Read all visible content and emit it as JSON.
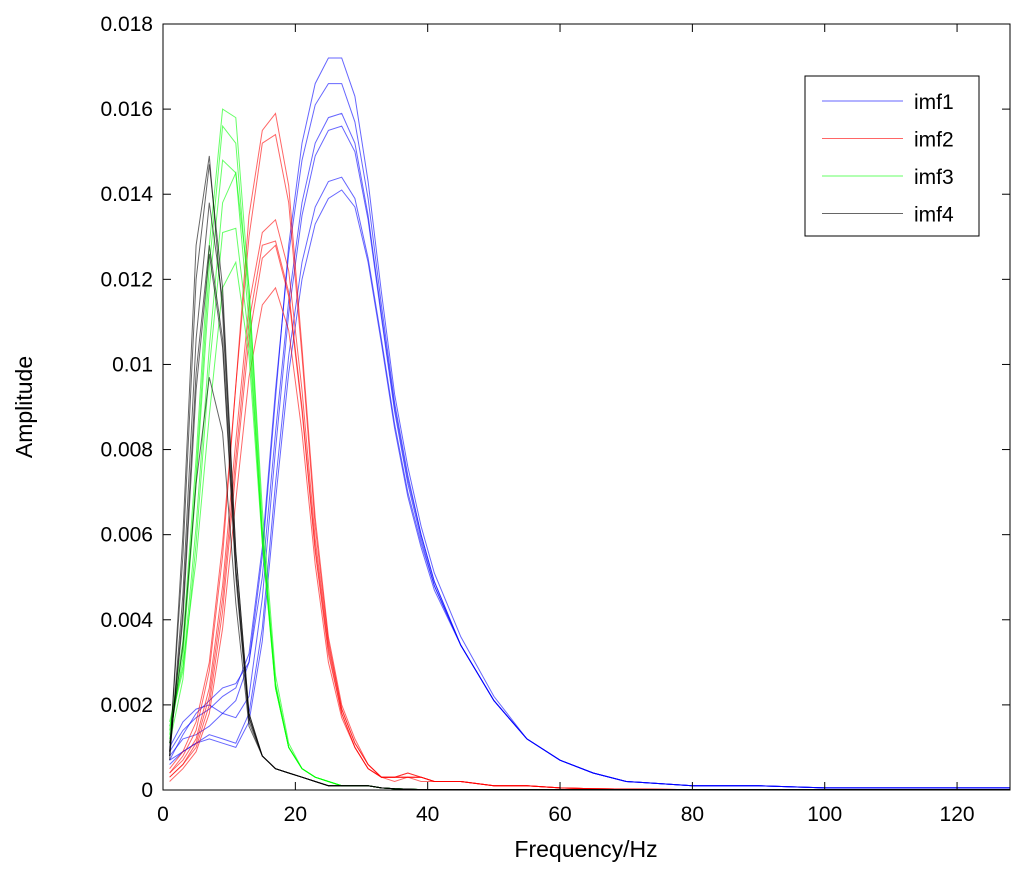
{
  "chart_data": {
    "type": "line",
    "title": "",
    "xlabel": "Frequency/Hz",
    "ylabel": "Amplitude",
    "xlim": [
      0,
      128
    ],
    "ylim": [
      0,
      0.018
    ],
    "xticks": [
      0,
      20,
      40,
      60,
      80,
      100,
      120
    ],
    "yticks": [
      0,
      0.002,
      0.004,
      0.006,
      0.008,
      0.01,
      0.012,
      0.014,
      0.016,
      0.018
    ],
    "ytick_labels": [
      "0",
      "0.002",
      "0.004",
      "0.006",
      "0.008",
      "0.01",
      "0.012",
      "0.014",
      "0.016",
      "0.018"
    ],
    "grid": false,
    "legend_position": "top-right",
    "x": [
      1,
      3,
      5,
      7,
      9,
      11,
      13,
      15,
      17,
      19,
      21,
      23,
      25,
      27,
      29,
      31,
      33,
      35,
      37,
      39,
      41,
      45,
      50,
      55,
      60,
      65,
      70,
      80,
      90,
      100,
      110,
      120,
      128
    ],
    "series": [
      {
        "name": "imf1",
        "color": "#0000ff",
        "curves": [
          [
            0.0008,
            0.0012,
            0.0013,
            0.0015,
            0.0018,
            0.0021,
            0.003,
            0.0055,
            0.0092,
            0.0128,
            0.0152,
            0.0166,
            0.0172,
            0.0172,
            0.0163,
            0.0143,
            0.0117,
            0.0093,
            0.0076,
            0.0062,
            0.0051,
            0.0036,
            0.0022,
            0.0012,
            0.0007,
            0.0004,
            0.0002,
            0.0001,
            0.0001,
            5e-05,
            5e-05,
            5e-05,
            5e-05
          ],
          [
            0.0009,
            0.0014,
            0.0017,
            0.0019,
            0.0022,
            0.0024,
            0.0032,
            0.0057,
            0.0094,
            0.0126,
            0.0148,
            0.0161,
            0.0166,
            0.0166,
            0.0157,
            0.0139,
            0.0114,
            0.0091,
            0.0074,
            0.006,
            0.0049,
            0.0034,
            0.0021,
            0.0012,
            0.0007,
            0.0004,
            0.0002,
            0.0001,
            0.0001,
            5e-05,
            5e-05,
            5e-05,
            5e-05
          ],
          [
            0.0007,
            0.0013,
            0.0018,
            0.0021,
            0.0024,
            0.0025,
            0.003,
            0.005,
            0.0084,
            0.0115,
            0.0138,
            0.0152,
            0.0158,
            0.0159,
            0.0152,
            0.0135,
            0.0112,
            0.009,
            0.0073,
            0.006,
            0.0049,
            0.0034,
            0.0021,
            0.0012,
            0.0007,
            0.0004,
            0.0002,
            0.0001,
            0.0001,
            5e-05,
            5e-05,
            5e-05,
            5e-05
          ],
          [
            0.001,
            0.0016,
            0.0019,
            0.002,
            0.0018,
            0.0017,
            0.0022,
            0.0045,
            0.008,
            0.0112,
            0.0135,
            0.0149,
            0.0155,
            0.0156,
            0.015,
            0.0134,
            0.0111,
            0.0089,
            0.0072,
            0.0059,
            0.0048,
            0.0034,
            0.0021,
            0.0012,
            0.0007,
            0.0004,
            0.0002,
            0.0001,
            0.0001,
            5e-05,
            5e-05,
            5e-05,
            5e-05
          ],
          [
            0.0006,
            0.0009,
            0.0011,
            0.0013,
            0.0012,
            0.0011,
            0.0018,
            0.0038,
            0.0072,
            0.0102,
            0.0124,
            0.0137,
            0.0143,
            0.0144,
            0.0139,
            0.0125,
            0.0106,
            0.0086,
            0.007,
            0.0058,
            0.0048,
            0.0034,
            0.0021,
            0.0012,
            0.0007,
            0.0004,
            0.0002,
            0.0001,
            0.0001,
            5e-05,
            5e-05,
            5e-05,
            5e-05
          ],
          [
            0.0007,
            0.0009,
            0.0011,
            0.0012,
            0.0011,
            0.001,
            0.0016,
            0.0035,
            0.0068,
            0.0098,
            0.012,
            0.0133,
            0.0139,
            0.0141,
            0.0137,
            0.0124,
            0.0105,
            0.0085,
            0.0069,
            0.0057,
            0.0047,
            0.0034,
            0.0021,
            0.0012,
            0.0007,
            0.0004,
            0.0002,
            0.0001,
            0.0001,
            5e-05,
            5e-05,
            5e-05,
            5e-05
          ]
        ]
      },
      {
        "name": "imf2",
        "color": "#ff0000",
        "curves": [
          [
            0.0004,
            0.0008,
            0.0014,
            0.0028,
            0.0055,
            0.0095,
            0.0135,
            0.0155,
            0.0159,
            0.0142,
            0.0104,
            0.0064,
            0.0036,
            0.002,
            0.0012,
            0.0006,
            0.0003,
            0.0003,
            0.0004,
            0.0003,
            0.0002,
            0.0002,
            0.0001,
            0.0001,
            5e-05,
            3e-05,
            2e-05,
            1e-05,
            1e-05,
            1e-05,
            1e-05,
            1e-05,
            1e-05
          ],
          [
            0.0005,
            0.0009,
            0.0016,
            0.003,
            0.0058,
            0.0095,
            0.013,
            0.0152,
            0.0154,
            0.0138,
            0.0102,
            0.0062,
            0.0035,
            0.0019,
            0.0011,
            0.0006,
            0.0003,
            0.0003,
            0.0004,
            0.0003,
            0.0002,
            0.0002,
            0.0001,
            0.0001,
            5e-05,
            3e-05,
            2e-05,
            1e-05,
            1e-05,
            1e-05,
            1e-05,
            1e-05,
            1e-05
          ],
          [
            0.0004,
            0.0007,
            0.0012,
            0.0024,
            0.0048,
            0.0082,
            0.0114,
            0.0131,
            0.0134,
            0.0122,
            0.0094,
            0.0059,
            0.0034,
            0.0019,
            0.0011,
            0.0006,
            0.0003,
            0.0003,
            0.0003,
            0.0003,
            0.0002,
            0.0002,
            0.0001,
            0.0001,
            5e-05,
            3e-05,
            2e-05,
            1e-05,
            1e-05,
            1e-05,
            1e-05,
            1e-05,
            1e-05
          ],
          [
            0.0003,
            0.0006,
            0.0011,
            0.0022,
            0.0045,
            0.0078,
            0.011,
            0.0128,
            0.0129,
            0.0117,
            0.009,
            0.0057,
            0.0033,
            0.0018,
            0.001,
            0.0005,
            0.0003,
            0.0003,
            0.0003,
            0.0003,
            0.0002,
            0.0002,
            0.0001,
            0.0001,
            5e-05,
            3e-05,
            2e-05,
            1e-05,
            1e-05,
            1e-05,
            1e-05,
            1e-05,
            1e-05
          ],
          [
            0.0003,
            0.0006,
            0.001,
            0.002,
            0.0042,
            0.0075,
            0.0106,
            0.0125,
            0.0128,
            0.0116,
            0.0089,
            0.0056,
            0.0032,
            0.0018,
            0.001,
            0.0005,
            0.0003,
            0.0003,
            0.0003,
            0.0003,
            0.0002,
            0.0002,
            0.0001,
            0.0001,
            5e-05,
            3e-05,
            2e-05,
            1e-05,
            1e-05,
            1e-05,
            1e-05,
            1e-05,
            1e-05
          ],
          [
            0.0002,
            0.0005,
            0.0009,
            0.0018,
            0.0038,
            0.0068,
            0.0097,
            0.0114,
            0.0118,
            0.0108,
            0.0084,
            0.0053,
            0.003,
            0.0017,
            0.001,
            0.0005,
            0.0003,
            0.0002,
            0.0003,
            0.0002,
            0.0002,
            0.0002,
            0.0001,
            0.0001,
            5e-05,
            3e-05,
            2e-05,
            1e-05,
            1e-05,
            1e-05,
            1e-05,
            1e-05,
            1e-05
          ]
        ]
      },
      {
        "name": "imf3",
        "color": "#00ff00",
        "curves": [
          [
            0.0014,
            0.0035,
            0.0078,
            0.0128,
            0.016,
            0.0158,
            0.0118,
            0.0062,
            0.0025,
            0.001,
            0.0005,
            0.0003,
            0.0002,
            0.0001,
            0.0001,
            0.0001,
            5e-05,
            3e-05,
            2e-05,
            1e-05,
            1e-05,
            1e-05,
            1e-05,
            1e-05,
            1e-05,
            1e-05,
            1e-05,
            1e-05,
            1e-05,
            1e-05,
            1e-05,
            1e-05,
            1e-05
          ],
          [
            0.0013,
            0.0033,
            0.0074,
            0.0123,
            0.0156,
            0.0152,
            0.0114,
            0.006,
            0.0024,
            0.001,
            0.0005,
            0.0003,
            0.0002,
            0.0001,
            0.0001,
            0.0001,
            5e-05,
            3e-05,
            2e-05,
            1e-05,
            1e-05,
            1e-05,
            1e-05,
            1e-05,
            1e-05,
            1e-05,
            1e-05,
            1e-05,
            1e-05,
            1e-05,
            1e-05,
            1e-05,
            1e-05
          ],
          [
            0.0012,
            0.0031,
            0.0072,
            0.0118,
            0.0148,
            0.0145,
            0.011,
            0.0058,
            0.0024,
            0.001,
            0.0005,
            0.0003,
            0.0002,
            0.0001,
            0.0001,
            0.0001,
            5e-05,
            3e-05,
            2e-05,
            1e-05,
            1e-05,
            1e-05,
            1e-05,
            1e-05,
            1e-05,
            1e-05,
            1e-05,
            1e-05,
            1e-05,
            1e-05,
            1e-05,
            1e-05,
            1e-05
          ],
          [
            0.0015,
            0.0028,
            0.0062,
            0.0104,
            0.0138,
            0.0145,
            0.0118,
            0.0066,
            0.0027,
            0.0011,
            0.0005,
            0.0003,
            0.0002,
            0.0001,
            0.0001,
            0.0001,
            5e-05,
            3e-05,
            2e-05,
            1e-05,
            1e-05,
            1e-05,
            1e-05,
            1e-05,
            1e-05,
            1e-05,
            1e-05,
            1e-05,
            1e-05,
            1e-05,
            1e-05,
            1e-05,
            1e-05
          ],
          [
            0.0011,
            0.0026,
            0.0058,
            0.0099,
            0.0131,
            0.0132,
            0.0106,
            0.006,
            0.0025,
            0.001,
            0.0005,
            0.0003,
            0.0002,
            0.0001,
            0.0001,
            0.0001,
            5e-05,
            3e-05,
            2e-05,
            1e-05,
            1e-05,
            1e-05,
            1e-05,
            1e-05,
            1e-05,
            1e-05,
            1e-05,
            1e-05,
            1e-05,
            1e-05,
            1e-05,
            1e-05,
            1e-05
          ],
          [
            0.0016,
            0.0029,
            0.0054,
            0.0088,
            0.0118,
            0.0124,
            0.0102,
            0.0058,
            0.0024,
            0.001,
            0.0005,
            0.0003,
            0.0002,
            0.0001,
            0.0001,
            0.0001,
            5e-05,
            3e-05,
            2e-05,
            1e-05,
            1e-05,
            1e-05,
            1e-05,
            1e-05,
            1e-05,
            1e-05,
            1e-05,
            1e-05,
            1e-05,
            1e-05,
            1e-05,
            1e-05,
            1e-05
          ]
        ]
      },
      {
        "name": "imf4",
        "color": "#000000",
        "curves": [
          [
            0.0008,
            0.006,
            0.0128,
            0.0149,
            0.0112,
            0.0052,
            0.0017,
            0.0008,
            0.0005,
            0.0004,
            0.0003,
            0.0002,
            0.0001,
            0.0001,
            0.0001,
            0.0001,
            5e-05,
            3e-05,
            2e-05,
            1e-05,
            1e-05,
            1e-05,
            1e-05,
            1e-05,
            1e-05,
            1e-05,
            1e-05,
            1e-05,
            1e-05,
            1e-05,
            1e-05,
            1e-05,
            1e-05
          ],
          [
            0.0009,
            0.0055,
            0.012,
            0.0147,
            0.0118,
            0.0056,
            0.0018,
            0.0008,
            0.0005,
            0.0004,
            0.0003,
            0.0002,
            0.0001,
            0.0001,
            0.0001,
            0.0001,
            5e-05,
            3e-05,
            2e-05,
            1e-05,
            1e-05,
            1e-05,
            1e-05,
            1e-05,
            1e-05,
            1e-05,
            1e-05,
            1e-05,
            1e-05,
            1e-05,
            1e-05,
            1e-05,
            1e-05
          ],
          [
            0.0007,
            0.0046,
            0.0106,
            0.0138,
            0.0115,
            0.0056,
            0.0018,
            0.0008,
            0.0005,
            0.0004,
            0.0003,
            0.0002,
            0.0001,
            0.0001,
            0.0001,
            0.0001,
            5e-05,
            3e-05,
            2e-05,
            1e-05,
            1e-05,
            1e-05,
            1e-05,
            1e-05,
            1e-05,
            1e-05,
            1e-05,
            1e-05,
            1e-05,
            1e-05,
            1e-05,
            1e-05,
            1e-05
          ],
          [
            0.0008,
            0.0042,
            0.0098,
            0.0128,
            0.0106,
            0.0052,
            0.0017,
            0.0008,
            0.0005,
            0.0004,
            0.0003,
            0.0002,
            0.0001,
            0.0001,
            0.0001,
            0.0001,
            5e-05,
            3e-05,
            2e-05,
            1e-05,
            1e-05,
            1e-05,
            1e-05,
            1e-05,
            1e-05,
            1e-05,
            1e-05,
            1e-05,
            1e-05,
            1e-05,
            1e-05,
            1e-05,
            1e-05
          ],
          [
            0.0009,
            0.004,
            0.0094,
            0.0126,
            0.0104,
            0.005,
            0.0016,
            0.0008,
            0.0005,
            0.0004,
            0.0003,
            0.0002,
            0.0001,
            0.0001,
            0.0001,
            0.0001,
            5e-05,
            3e-05,
            2e-05,
            1e-05,
            1e-05,
            1e-05,
            1e-05,
            1e-05,
            1e-05,
            1e-05,
            1e-05,
            1e-05,
            1e-05,
            1e-05,
            1e-05,
            1e-05,
            1e-05
          ],
          [
            0.0011,
            0.0034,
            0.0072,
            0.0097,
            0.0084,
            0.0044,
            0.0015,
            0.0008,
            0.0005,
            0.0004,
            0.0003,
            0.0002,
            0.0001,
            0.0001,
            0.0001,
            0.0001,
            5e-05,
            3e-05,
            2e-05,
            1e-05,
            1e-05,
            1e-05,
            1e-05,
            1e-05,
            1e-05,
            1e-05,
            1e-05,
            1e-05,
            1e-05,
            1e-05,
            1e-05,
            1e-05,
            1e-05
          ]
        ]
      }
    ]
  }
}
